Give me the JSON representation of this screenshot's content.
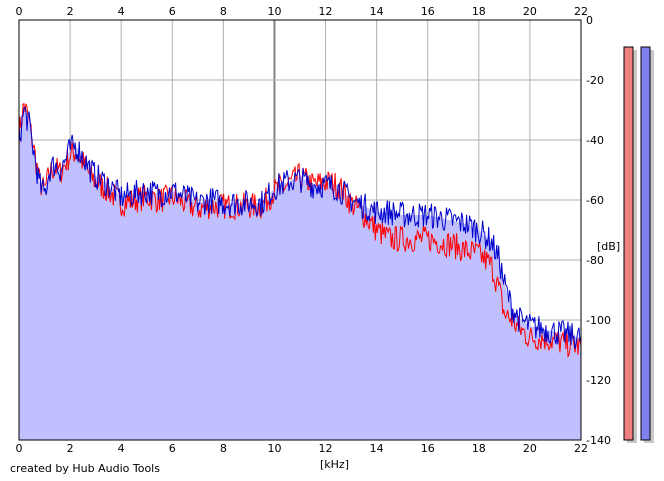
{
  "credit_text": "created by Hub Audio Tools",
  "chart_data": {
    "type": "area",
    "xlabel": "[kHz]",
    "ylabel": "[dB]",
    "xlim": [
      0,
      22
    ],
    "ylim": [
      -140,
      0
    ],
    "x_ticks": [
      "0",
      "2",
      "4",
      "6",
      "8",
      "10",
      "12",
      "14",
      "16",
      "18",
      "20",
      "22"
    ],
    "y_ticks": [
      "0",
      "-20",
      "-40",
      "-60",
      "-80",
      "-100",
      "-120",
      "-140"
    ],
    "grid": true,
    "fill_color": "#c0c0ff",
    "series": [
      {
        "color": "#0000cc",
        "x": [
          0,
          0.2,
          0.4,
          0.6,
          0.8,
          1.0,
          1.2,
          1.4,
          1.6,
          1.8,
          2.0,
          2.2,
          2.4,
          2.6,
          2.8,
          3.0,
          3.5,
          4.0,
          4.5,
          5.0,
          5.5,
          6.0,
          6.5,
          7.0,
          7.5,
          8.0,
          8.5,
          9.0,
          9.5,
          10.0,
          10.5,
          11.0,
          11.5,
          12.0,
          12.5,
          13.0,
          13.5,
          14.0,
          14.5,
          15.0,
          15.5,
          16.0,
          16.5,
          17.0,
          17.5,
          18.0,
          18.5,
          18.8,
          19.0,
          19.3,
          19.6,
          20.0,
          20.5,
          21.0,
          21.5,
          22.0
        ],
        "y": [
          -40,
          -30,
          -35,
          -45,
          -55,
          -58,
          -50,
          -48,
          -50,
          -47,
          -43,
          -42,
          -44,
          -47,
          -50,
          -52,
          -55,
          -59,
          -58,
          -57,
          -58,
          -57,
          -59,
          -61,
          -60,
          -61,
          -61,
          -61,
          -61,
          -56,
          -54,
          -53,
          -55,
          -55,
          -56,
          -60,
          -62,
          -64,
          -64,
          -65,
          -65,
          -65,
          -66,
          -67,
          -68,
          -70,
          -74,
          -80,
          -88,
          -96,
          -100,
          -102,
          -103,
          -104,
          -105,
          -106
        ]
      },
      {
        "color": "#ff0000",
        "x": [
          0,
          0.2,
          0.4,
          0.6,
          0.8,
          1.0,
          1.2,
          1.4,
          1.6,
          1.8,
          2.0,
          2.2,
          2.4,
          2.6,
          2.8,
          3.0,
          3.5,
          4.0,
          4.5,
          5.0,
          5.5,
          6.0,
          6.5,
          7.0,
          7.5,
          8.0,
          8.5,
          9.0,
          9.5,
          10.0,
          10.5,
          11.0,
          11.5,
          12.0,
          12.5,
          13.0,
          13.5,
          14.0,
          14.5,
          15.0,
          15.5,
          16.0,
          16.5,
          17.0,
          17.5,
          18.0,
          18.5,
          18.8,
          19.0,
          19.3,
          19.6,
          20.0,
          20.5,
          21.0,
          21.5,
          22.0
        ],
        "y": [
          -38,
          -28,
          -34,
          -44,
          -54,
          -57,
          -51,
          -49,
          -51,
          -48,
          -45,
          -44,
          -46,
          -49,
          -52,
          -54,
          -57,
          -61,
          -60,
          -59,
          -60,
          -59,
          -61,
          -63,
          -62,
          -62,
          -62,
          -62,
          -62,
          -57,
          -55,
          -52,
          -55,
          -54,
          -55,
          -61,
          -65,
          -70,
          -73,
          -73,
          -73,
          -73,
          -74,
          -75,
          -77,
          -78,
          -82,
          -90,
          -98,
          -100,
          -103,
          -106,
          -106,
          -107,
          -108,
          -109
        ]
      }
    ],
    "level_meters": [
      {
        "channel": "left",
        "color": "#f08080",
        "level": 1.0
      },
      {
        "channel": "right",
        "color": "#8080f0",
        "level": 1.0
      }
    ]
  }
}
